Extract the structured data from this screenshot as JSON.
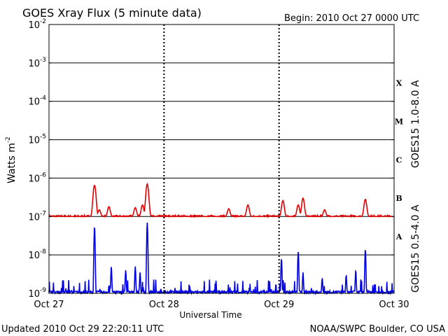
{
  "header": {
    "title": "GOES Xray Flux (5 minute data)",
    "begin_label": "Begin:  2010 Oct 27 0000 UTC"
  },
  "footer": {
    "updated": "Updated 2010 Oct 29 22:20:11 UTC",
    "credit": "NOAA/SWPC Boulder, CO USA"
  },
  "colors": {
    "long_channel": "#e00000",
    "short_channel": "#0000e6",
    "axes": "#000000"
  },
  "chart_data": {
    "type": "line",
    "title": "GOES Xray Flux (5 minute data)",
    "xlabel": "Universal Time",
    "ylabel_base": "Watts m",
    "ylabel_exponent": "-2",
    "yscale": "log",
    "ylim": [
      1e-09,
      0.01
    ],
    "xlim": [
      0,
      72
    ],
    "x_units": "hours since 2010 Oct 27 0000 UTC",
    "x_ticks": [
      {
        "x": 0,
        "label": "Oct 27"
      },
      {
        "x": 24,
        "label": "Oct 28"
      },
      {
        "x": 48,
        "label": "Oct 29"
      },
      {
        "x": 72,
        "label": "Oct 30"
      }
    ],
    "y_ticks": [
      {
        "value": 1e-09,
        "base": "10",
        "exp": "-9"
      },
      {
        "value": 1e-08,
        "base": "10",
        "exp": "-8"
      },
      {
        "value": 1e-07,
        "base": "10",
        "exp": "-7"
      },
      {
        "value": 1e-06,
        "base": "10",
        "exp": "-6"
      },
      {
        "value": 1e-05,
        "base": "10",
        "exp": "-5"
      },
      {
        "value": 0.0001,
        "base": "10",
        "exp": "-4"
      },
      {
        "value": 0.001,
        "base": "10",
        "exp": "-3"
      },
      {
        "value": 0.01,
        "base": "10",
        "exp": "-2"
      }
    ],
    "flare_classes": [
      {
        "label": "A",
        "value": 3e-08
      },
      {
        "label": "B",
        "value": 3e-07
      },
      {
        "label": "C",
        "value": 3e-06
      },
      {
        "label": "M",
        "value": 3e-05
      },
      {
        "label": "X",
        "value": 0.0003
      }
    ],
    "grid": "horizontal lines at each decade; dotted verticals at day boundaries",
    "series": [
      {
        "name": "GOES15 1.0-8.0 A",
        "color": "#e00000",
        "baseline": 1e-07,
        "peaks": [
          {
            "x": 9.5,
            "y": 6.5e-07
          },
          {
            "x": 20.5,
            "y": 7e-07
          },
          {
            "x": 19.5,
            "y": 2e-07
          },
          {
            "x": 18.0,
            "y": 1.7e-07
          },
          {
            "x": 12.5,
            "y": 1.8e-07
          },
          {
            "x": 10.5,
            "y": 1.5e-07
          },
          {
            "x": 37.5,
            "y": 1.6e-07
          },
          {
            "x": 41.5,
            "y": 2e-07
          },
          {
            "x": 48.8,
            "y": 2.6e-07
          },
          {
            "x": 52.0,
            "y": 2e-07
          },
          {
            "x": 53.0,
            "y": 3e-07
          },
          {
            "x": 57.5,
            "y": 1.5e-07
          },
          {
            "x": 66.0,
            "y": 2.8e-07
          }
        ]
      },
      {
        "name": "GOES15 0.5-4.0 A",
        "color": "#0000e6",
        "baseline": 1e-09,
        "peaks": [
          {
            "x": 9.5,
            "y": 5.5e-08
          },
          {
            "x": 20.5,
            "y": 7e-08
          },
          {
            "x": 13.0,
            "y": 5e-09
          },
          {
            "x": 16.0,
            "y": 4e-09
          },
          {
            "x": 18.0,
            "y": 5e-09
          },
          {
            "x": 19.0,
            "y": 3.5e-09
          },
          {
            "x": 48.5,
            "y": 8e-09
          },
          {
            "x": 52.0,
            "y": 1.2e-08
          },
          {
            "x": 53.0,
            "y": 3.5e-09
          },
          {
            "x": 57.0,
            "y": 2.5e-09
          },
          {
            "x": 62.0,
            "y": 3e-09
          },
          {
            "x": 64.0,
            "y": 4e-09
          },
          {
            "x": 66.0,
            "y": 1.4e-08
          }
        ]
      }
    ]
  }
}
